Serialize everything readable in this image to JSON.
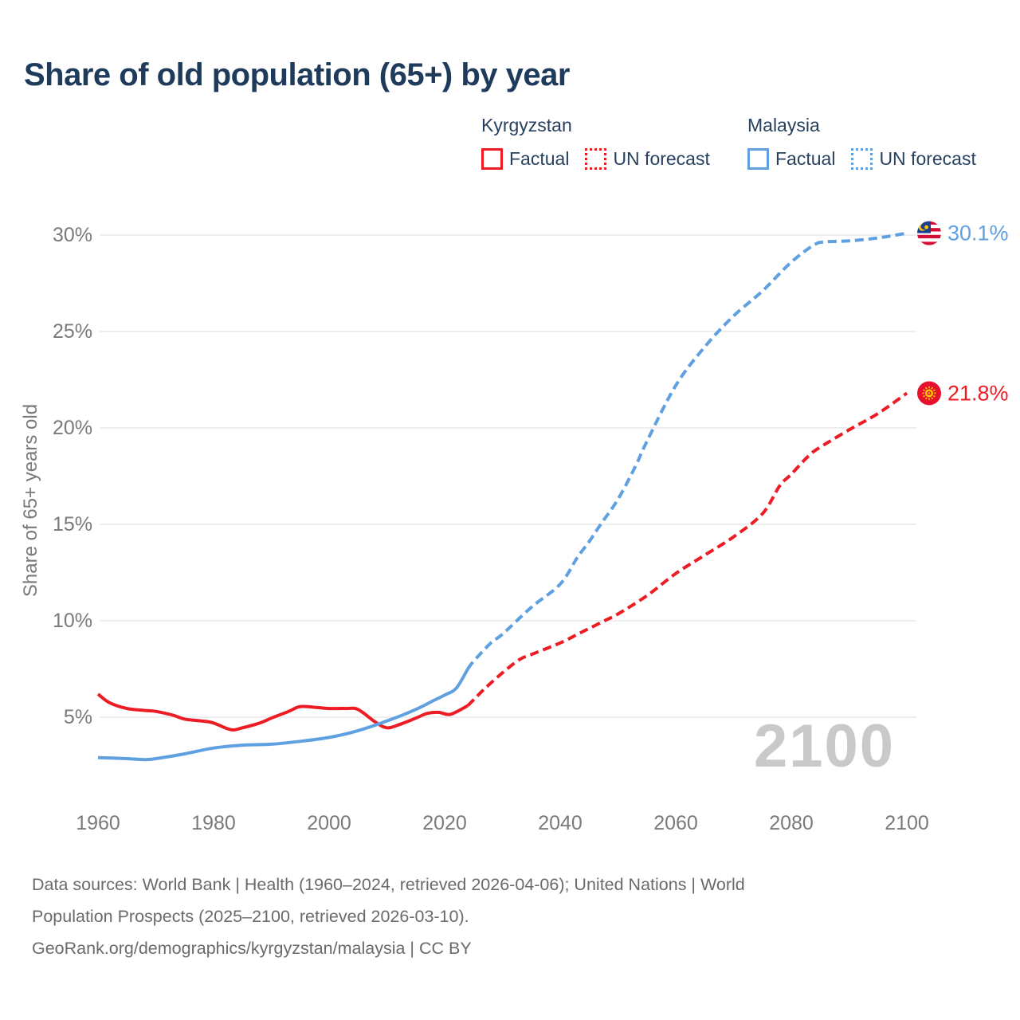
{
  "page": {
    "title": "Share of old population (65+) by year"
  },
  "legend": {
    "groups": [
      {
        "label": "Kyrgyzstan",
        "color": "#ed1c24",
        "items": [
          {
            "label": "Factual",
            "style": "solid"
          },
          {
            "label": "UN forecast",
            "style": "dotted"
          }
        ]
      },
      {
        "label": "Malaysia",
        "color": "#5fa0e1",
        "items": [
          {
            "label": "Factual",
            "style": "solid"
          },
          {
            "label": "UN forecast",
            "style": "dotted"
          }
        ]
      }
    ]
  },
  "chart_data": {
    "type": "line",
    "title": "Share of old population (65+) by year",
    "ylabel": "Share of 65+ years old",
    "xlabel": "",
    "x_ticks": [
      1960,
      1980,
      2000,
      2020,
      2040,
      2060,
      2080,
      2100
    ],
    "y_ticks_percent": [
      5,
      10,
      15,
      20,
      25,
      30
    ],
    "x_range": [
      1960,
      2100
    ],
    "y_range_percent": [
      5,
      30
    ],
    "grid": "horizontal",
    "legend_position": "top",
    "watermark": "2100",
    "colors": {
      "kyrgyzstan": "#ed1c24",
      "malaysia": "#5fa0e1",
      "grid": "#e8e8e8",
      "axis_text": "#7a7a7a"
    },
    "series": [
      {
        "name": "Kyrgyzstan Factual",
        "country": "Kyrgyzstan",
        "kind": "factual",
        "color": "#ed1c24",
        "dash": false,
        "points": [
          [
            1960,
            6.2
          ],
          [
            1962,
            5.75
          ],
          [
            1965,
            5.45
          ],
          [
            1968,
            5.35
          ],
          [
            1970,
            5.3
          ],
          [
            1973,
            5.1
          ],
          [
            1975,
            4.9
          ],
          [
            1978,
            4.8
          ],
          [
            1980,
            4.7
          ],
          [
            1983,
            4.35
          ],
          [
            1985,
            4.45
          ],
          [
            1988,
            4.7
          ],
          [
            1990,
            4.95
          ],
          [
            1993,
            5.3
          ],
          [
            1995,
            5.55
          ],
          [
            1998,
            5.5
          ],
          [
            2000,
            5.45
          ],
          [
            2003,
            5.45
          ],
          [
            2005,
            5.4
          ],
          [
            2008,
            4.75
          ],
          [
            2010,
            4.45
          ],
          [
            2012,
            4.6
          ],
          [
            2015,
            4.95
          ],
          [
            2017,
            5.2
          ],
          [
            2019,
            5.25
          ],
          [
            2021,
            5.15
          ],
          [
            2024,
            5.6
          ]
        ]
      },
      {
        "name": "Kyrgyzstan UN forecast",
        "country": "Kyrgyzstan",
        "kind": "forecast",
        "color": "#ed1c24",
        "dash": true,
        "points": [
          [
            2025,
            5.9
          ],
          [
            2027,
            6.5
          ],
          [
            2030,
            7.3
          ],
          [
            2033,
            8.0
          ],
          [
            2035,
            8.25
          ],
          [
            2040,
            8.85
          ],
          [
            2043,
            9.3
          ],
          [
            2045,
            9.6
          ],
          [
            2048,
            10.05
          ],
          [
            2050,
            10.35
          ],
          [
            2055,
            11.3
          ],
          [
            2060,
            12.45
          ],
          [
            2065,
            13.4
          ],
          [
            2070,
            14.35
          ],
          [
            2075,
            15.55
          ],
          [
            2078,
            17.0
          ],
          [
            2080,
            17.6
          ],
          [
            2083,
            18.55
          ],
          [
            2085,
            19.0
          ],
          [
            2090,
            19.9
          ],
          [
            2095,
            20.75
          ],
          [
            2100,
            21.8
          ]
        ]
      },
      {
        "name": "Malaysia Factual",
        "country": "Malaysia",
        "kind": "factual",
        "color": "#5fa0e1",
        "dash": false,
        "points": [
          [
            1960,
            2.9
          ],
          [
            1965,
            2.85
          ],
          [
            1968,
            2.8
          ],
          [
            1970,
            2.85
          ],
          [
            1975,
            3.1
          ],
          [
            1980,
            3.4
          ],
          [
            1985,
            3.55
          ],
          [
            1990,
            3.6
          ],
          [
            1995,
            3.75
          ],
          [
            2000,
            3.95
          ],
          [
            2005,
            4.3
          ],
          [
            2010,
            4.8
          ],
          [
            2015,
            5.4
          ],
          [
            2018,
            5.85
          ],
          [
            2020,
            6.15
          ],
          [
            2022,
            6.5
          ],
          [
            2024,
            7.5
          ]
        ]
      },
      {
        "name": "Malaysia UN forecast",
        "country": "Malaysia",
        "kind": "forecast",
        "color": "#5fa0e1",
        "dash": true,
        "points": [
          [
            2025,
            7.9
          ],
          [
            2028,
            8.85
          ],
          [
            2030,
            9.3
          ],
          [
            2035,
            10.7
          ],
          [
            2040,
            11.9
          ],
          [
            2043,
            13.3
          ],
          [
            2045,
            14.1
          ],
          [
            2047,
            15.0
          ],
          [
            2050,
            16.3
          ],
          [
            2053,
            18.0
          ],
          [
            2055,
            19.3
          ],
          [
            2060,
            22.2
          ],
          [
            2065,
            24.2
          ],
          [
            2070,
            25.8
          ],
          [
            2075,
            27.1
          ],
          [
            2080,
            28.6
          ],
          [
            2084,
            29.5
          ],
          [
            2086,
            29.65
          ],
          [
            2090,
            29.7
          ],
          [
            2095,
            29.85
          ],
          [
            2100,
            30.1
          ]
        ]
      }
    ],
    "end_labels": [
      {
        "country": "Malaysia",
        "text": "30.1%",
        "value": 30.1,
        "year": 2100,
        "color": "#5fa0e1",
        "flag": "malaysia"
      },
      {
        "country": "Kyrgyzstan",
        "text": "21.8%",
        "value": 21.8,
        "year": 2100,
        "color": "#ed1c24",
        "flag": "kyrgyzstan"
      }
    ]
  },
  "footer": {
    "lines": [
      "Data sources: World Bank | Health (1960–2024, retrieved 2026-04-06); United Nations | World",
      "Population Prospects (2025–2100, retrieved 2026-03-10).",
      "GeoRank.org/demographics/kyrgyzstan/malaysia | CC BY"
    ]
  }
}
